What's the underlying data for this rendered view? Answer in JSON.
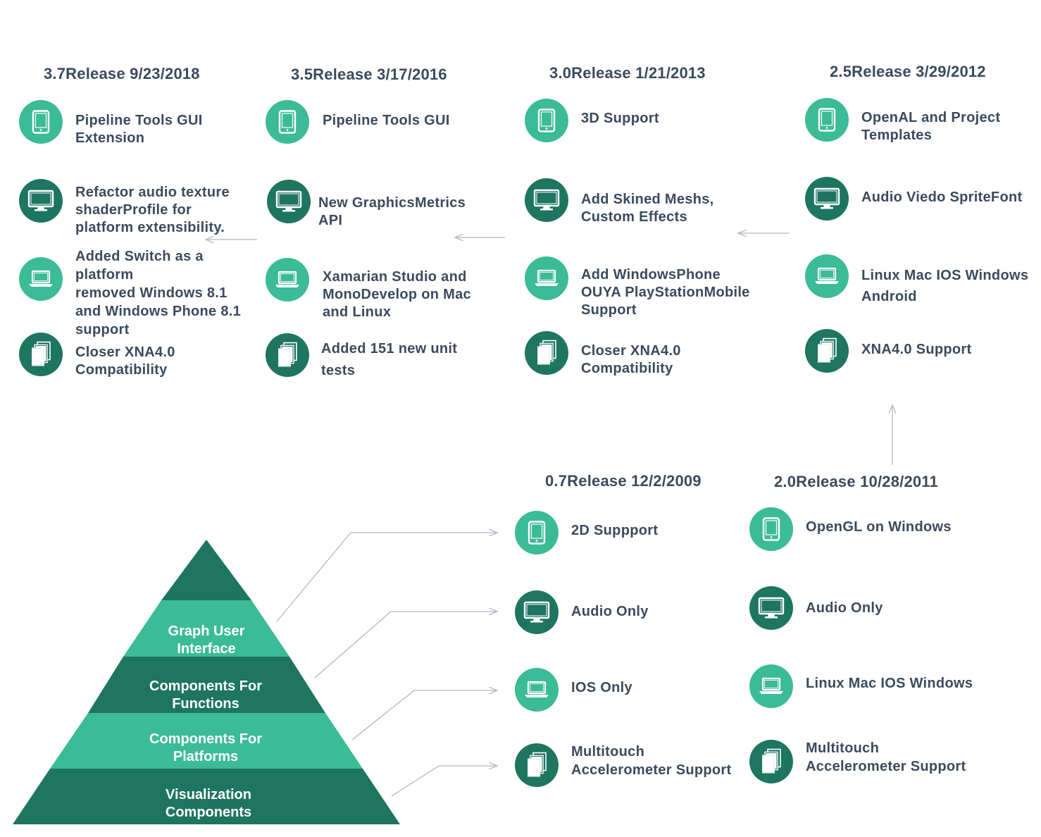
{
  "colors": {
    "light": "#3bbb96",
    "dark": "#1e7560",
    "text": "#3b4a5e",
    "arrow": "#aeb8c6"
  },
  "releases": [
    {
      "title": "3.7Release 9/23/2018",
      "items": [
        {
          "label": "Pipeline Tools GUI\nExtension",
          "icon": "tablet-icon",
          "tone": "light"
        },
        {
          "label": "Refactor audio texture\nshaderProfile for\nplatform extensibility.",
          "icon": "monitor-icon",
          "tone": "dark"
        },
        {
          "label": "Added Switch as a\nplatform\nremoved Windows 8.1\nand Windows Phone 8.1\nsupport",
          "icon": "laptop-icon",
          "tone": "light"
        },
        {
          "label": "Closer XNA4.0\nCompatibility",
          "icon": "documents-icon",
          "tone": "dark"
        }
      ]
    },
    {
      "title": "3.5Release 3/17/2016",
      "items": [
        {
          "label": "Pipeline Tools GUI",
          "icon": "tablet-icon",
          "tone": "light"
        },
        {
          "label": "New GraphicsMetrics\nAPI",
          "icon": "monitor-icon",
          "tone": "dark"
        },
        {
          "label": "Xamarian Studio and\nMonoDevelop on Mac\nand Linux",
          "icon": "laptop-icon",
          "tone": "light"
        },
        {
          "label": "Added 151 new unit\ntests",
          "icon": "documents-icon",
          "tone": "dark"
        }
      ]
    },
    {
      "title": "3.0Release 1/21/2013",
      "items": [
        {
          "label": "3D Support",
          "icon": "tablet-icon",
          "tone": "light"
        },
        {
          "label": "Add Skined Meshs,\nCustom Effects",
          "icon": "monitor-icon",
          "tone": "dark"
        },
        {
          "label": "Add WindowsPhone\nOUYA PlayStationMobile\nSupport",
          "icon": "laptop-icon",
          "tone": "light"
        },
        {
          "label": "Closer XNA4.0\nCompatibility",
          "icon": "documents-icon",
          "tone": "dark"
        }
      ]
    },
    {
      "title": "2.5Release 3/29/2012",
      "items": [
        {
          "label": "OpenAL and Project\nTemplates",
          "icon": "tablet-icon",
          "tone": "light"
        },
        {
          "label": "Audio Viedo SpriteFont",
          "icon": "monitor-icon",
          "tone": "dark"
        },
        {
          "label": "Linux Mac IOS Windows\nAndroid",
          "icon": "laptop-icon",
          "tone": "light"
        },
        {
          "label": "XNA4.0 Support",
          "icon": "documents-icon",
          "tone": "dark"
        }
      ]
    },
    {
      "title": "0.7Release 12/2/2009",
      "items": [
        {
          "label": "2D Suppport",
          "icon": "tablet-icon",
          "tone": "light"
        },
        {
          "label": "Audio Only",
          "icon": "monitor-icon",
          "tone": "dark"
        },
        {
          "label": "IOS Only",
          "icon": "laptop-icon",
          "tone": "light"
        },
        {
          "label": "Multitouch\nAccelerometer Support",
          "icon": "documents-icon",
          "tone": "dark"
        }
      ]
    },
    {
      "title": "2.0Release 10/28/2011",
      "items": [
        {
          "label": "OpenGL on Windows",
          "icon": "tablet-icon",
          "tone": "light"
        },
        {
          "label": "Audio Only",
          "icon": "monitor-icon",
          "tone": "dark"
        },
        {
          "label": "Linux Mac IOS Windows",
          "icon": "laptop-icon",
          "tone": "light"
        },
        {
          "label": "Multitouch\nAccelerometer Support",
          "icon": "documents-icon",
          "tone": "dark"
        }
      ]
    }
  ],
  "pyramid": {
    "layers": [
      {
        "label": "",
        "tone": "dark"
      },
      {
        "label": "Graph User\nInterface",
        "tone": "light"
      },
      {
        "label": "Components For\nFunctions",
        "tone": "dark"
      },
      {
        "label": "Components For\nPlatforms",
        "tone": "light"
      },
      {
        "label": "Visualization\nComponents",
        "tone": "dark"
      }
    ]
  }
}
